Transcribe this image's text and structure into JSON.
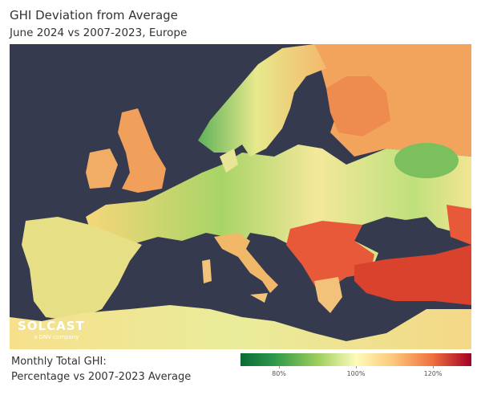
{
  "title": "GHI Deviation from Average",
  "subtitle": "June 2024 vs 2007-2023, Europe",
  "logo": {
    "name": "SOLCAST",
    "tagline": "a DNV company"
  },
  "legend": {
    "caption_line1": "Monthly Total GHI:",
    "caption_line2": "Percentage vs 2007-2023 Average",
    "range": [
      70,
      130
    ],
    "ticks": [
      {
        "value": 80,
        "label": "80%"
      },
      {
        "value": 100,
        "label": "100%"
      },
      {
        "value": 120,
        "label": "120%"
      }
    ],
    "colors": [
      "#0a6b35",
      "#9acd5a",
      "#fdfbbb",
      "#f0713f",
      "#a50026"
    ]
  },
  "map": {
    "sea_color": "#363a4f"
  }
}
